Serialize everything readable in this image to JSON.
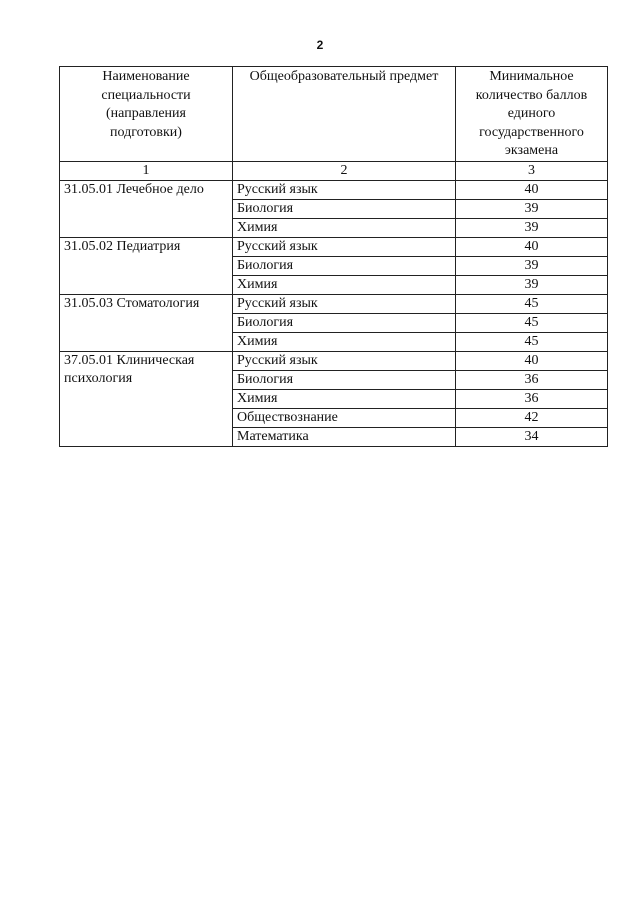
{
  "page_number": "2",
  "header": {
    "col1": [
      "Наименование",
      "специальности",
      "(направления",
      "подготовки)"
    ],
    "col2": [
      "Общеобразовательный предмет"
    ],
    "col3": [
      "Минимальное",
      "количество баллов",
      "единого",
      "государственного",
      "экзамена"
    ]
  },
  "column_numbers": [
    "1",
    "2",
    "3"
  ],
  "groups": [
    {
      "specialty": "31.05.01 Лечебное дело",
      "rows": [
        {
          "subject": "Русский язык",
          "score": "40"
        },
        {
          "subject": "Биология",
          "score": "39"
        },
        {
          "subject": "Химия",
          "score": "39"
        }
      ]
    },
    {
      "specialty": "31.05.02 Педиатрия",
      "rows": [
        {
          "subject": "Русский язык",
          "score": "40"
        },
        {
          "subject": "Биология",
          "score": "39"
        },
        {
          "subject": "Химия",
          "score": "39"
        }
      ]
    },
    {
      "specialty": "31.05.03 Стоматология",
      "rows": [
        {
          "subject": "Русский язык",
          "score": "45"
        },
        {
          "subject": "Биология",
          "score": "45"
        },
        {
          "subject": "Химия",
          "score": "45"
        }
      ]
    },
    {
      "specialty": "37.05.01 Клиническая психология",
      "rows": [
        {
          "subject": "Русский язык",
          "score": "40"
        },
        {
          "subject": "Биология",
          "score": "36"
        },
        {
          "subject": "Химия",
          "score": "36"
        },
        {
          "subject": "Обществознание",
          "score": "42"
        },
        {
          "subject": "Математика",
          "score": "34"
        }
      ]
    }
  ]
}
